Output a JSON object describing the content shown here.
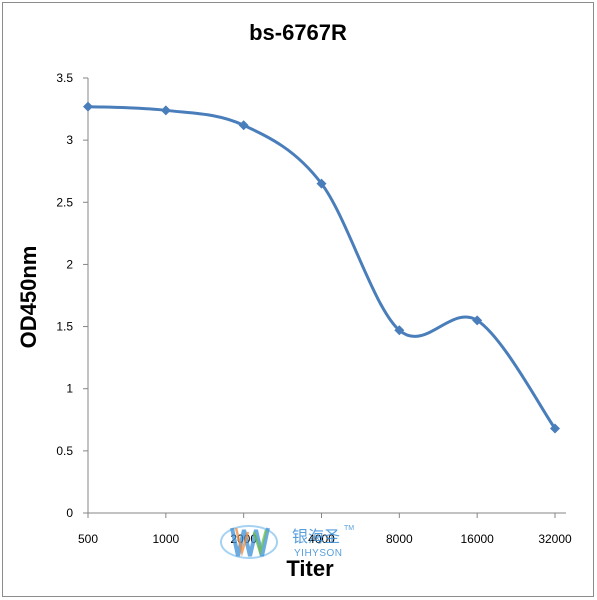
{
  "chart_data": {
    "type": "line",
    "title": "bs-6767R",
    "xlabel": "Titer",
    "ylabel": "OD450nm",
    "categories": [
      "500",
      "1000",
      "2000",
      "4000",
      "8000",
      "16000",
      "32000"
    ],
    "series": [
      {
        "values": [
          3.27,
          3.24,
          3.12,
          2.65,
          1.47,
          1.55,
          0.68
        ]
      }
    ],
    "ylim": [
      0,
      3.5
    ],
    "yticks": [
      "0",
      "0.5",
      "1",
      "1.5",
      "2",
      "2.5",
      "3",
      "3.5"
    ],
    "grid": false,
    "smooth": true,
    "line_color": "#4a7ebb",
    "marker": "diamond"
  },
  "watermark": {
    "cn": "银海圣",
    "en": "YIHYSON",
    "tm": "TM"
  }
}
